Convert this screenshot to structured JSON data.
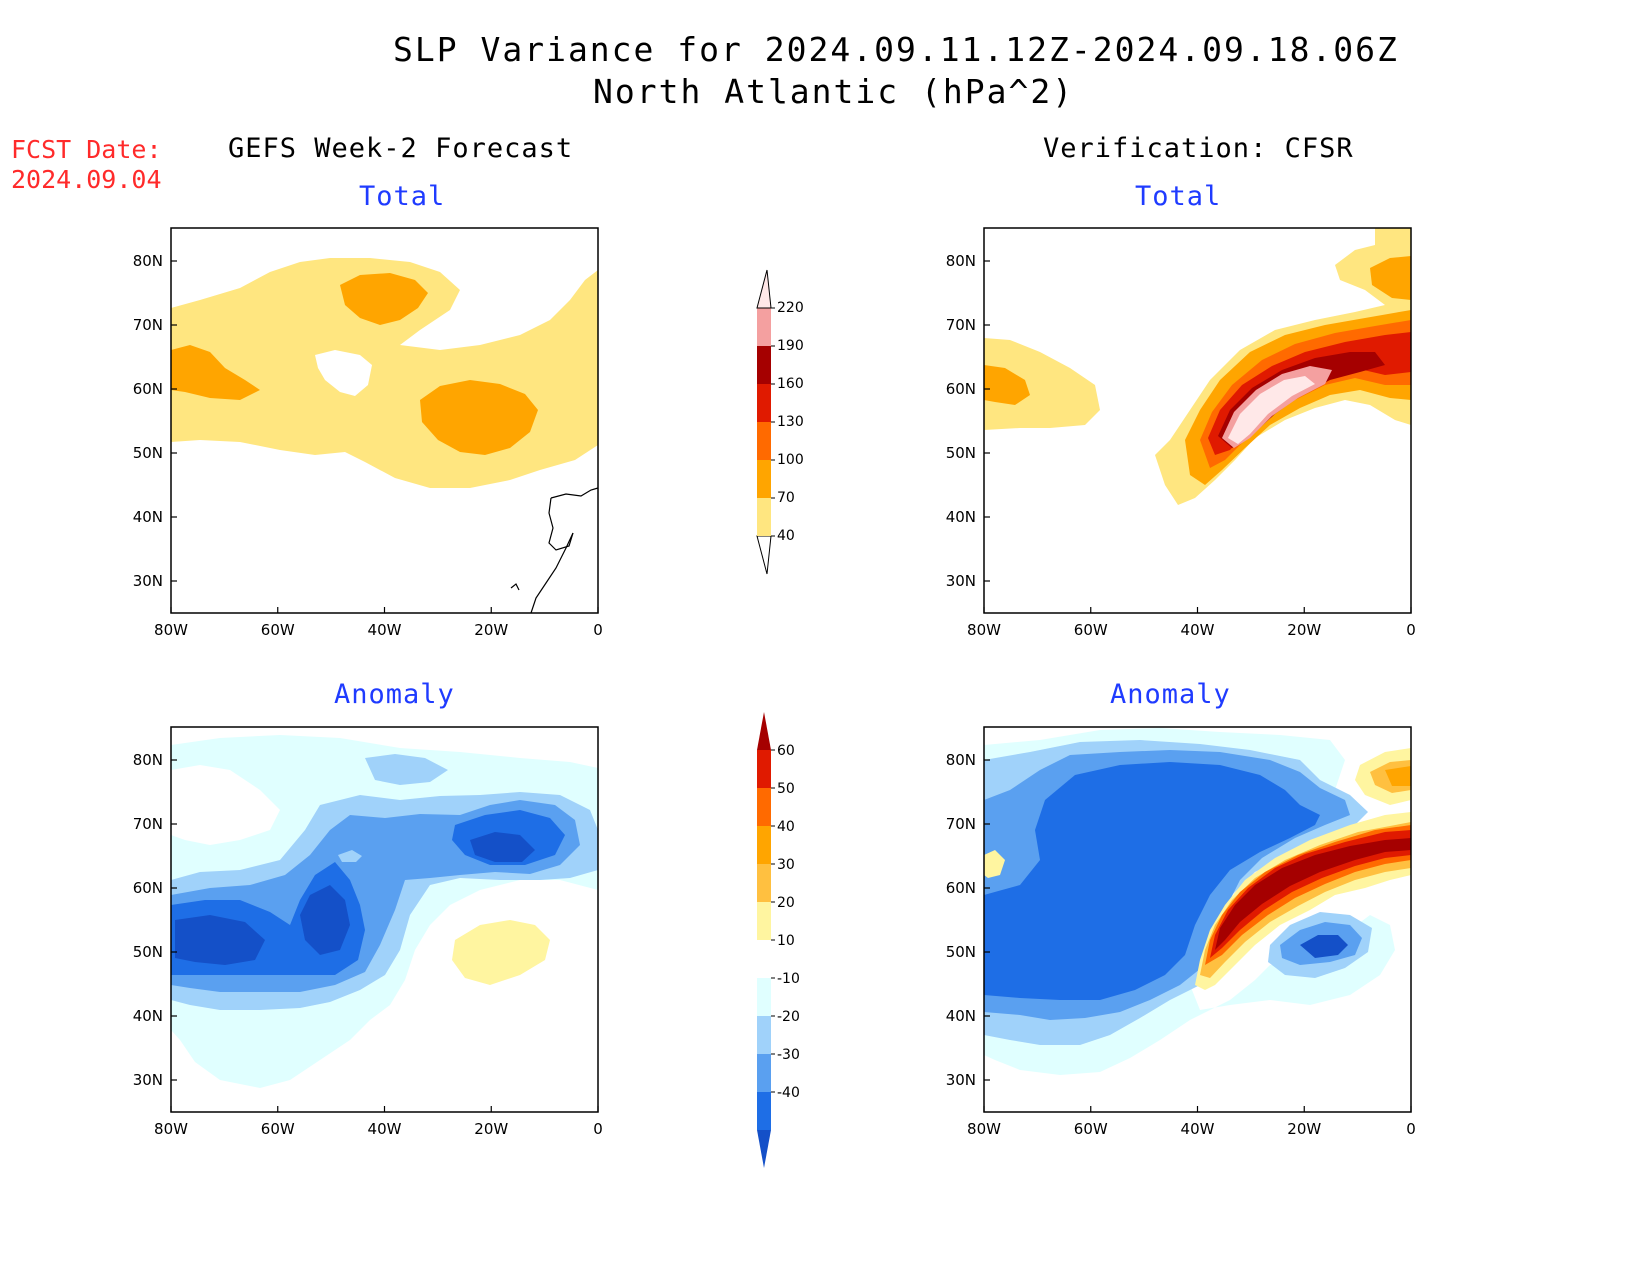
{
  "header": {
    "title_line1": "SLP Variance for 2024.09.11.12Z-2024.09.18.06Z",
    "title_line2": "North Atlantic (hPa^2)"
  },
  "fcst": {
    "line1": "FCST Date:",
    "line2": "2024.09.04"
  },
  "columns": {
    "left": "GEFS Week-2 Forecast",
    "right": "Verification: CFSR"
  },
  "panels": {
    "top_left": "Total",
    "top_right": "Total",
    "bottom_left": "Anomaly",
    "bottom_right": "Anomaly"
  },
  "axes": {
    "lon_ticks": [
      "80W",
      "60W",
      "40W",
      "20W",
      "0"
    ],
    "lat_ticks": [
      "80N",
      "70N",
      "60N",
      "50N",
      "40N",
      "30N"
    ]
  },
  "colorbars": {
    "total": {
      "levels": [
        "40",
        "70",
        "100",
        "130",
        "160",
        "190",
        "220"
      ],
      "colors": [
        "#ffe680",
        "#ffa500",
        "#ff6a00",
        "#e01a00",
        "#a50000",
        "#f4a0a0",
        "#ffe8e8"
      ]
    },
    "anomaly": {
      "levels": [
        "60",
        "50",
        "40",
        "30",
        "20",
        "10",
        "-10",
        "-20",
        "-30",
        "-40"
      ],
      "colors": [
        "#a50000",
        "#e01a00",
        "#ff6a00",
        "#ffa500",
        "#ffc040",
        "#fff5a0",
        "#ffffff",
        "#e0ffff",
        "#a0d2fa",
        "#5aa0f0",
        "#1e6ee6",
        "#1450c8"
      ]
    }
  }
}
